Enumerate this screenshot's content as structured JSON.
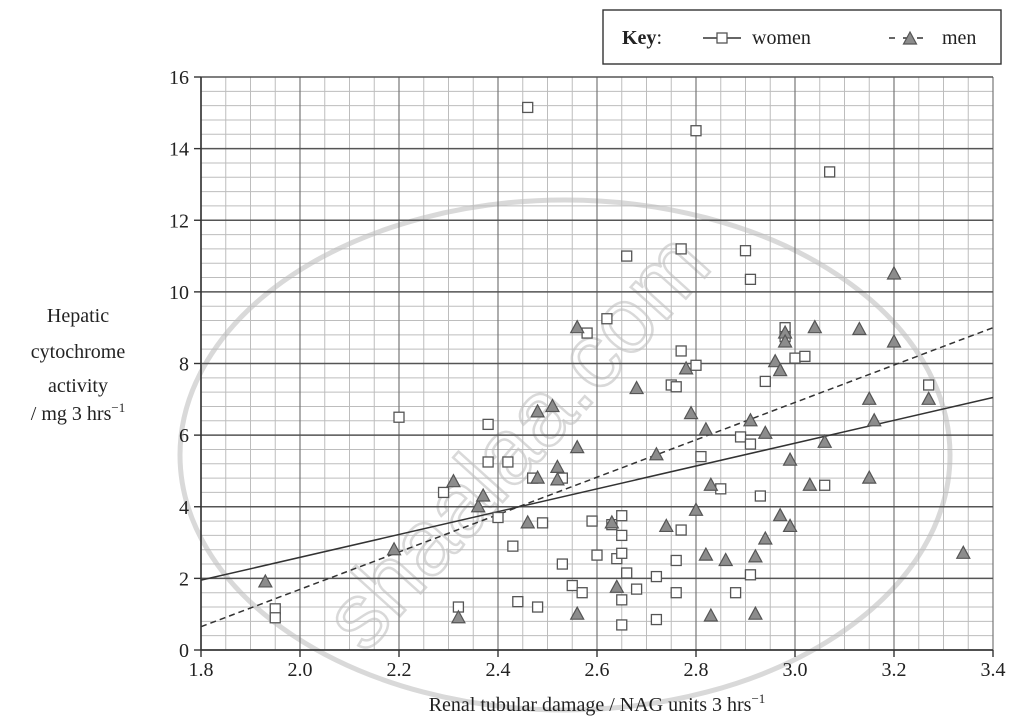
{
  "chart_data": {
    "type": "scatter",
    "title": "",
    "xlabel": "Renal tubular damage / NAG units 3 hrs",
    "xlabel_sup": "−1",
    "ylabel_lines": [
      "Hepatic",
      "cytochrome",
      "activity",
      "/ mg 3 hrs"
    ],
    "ylabel_sup": "−1",
    "xlim": [
      1.8,
      3.4
    ],
    "ylim": [
      0,
      16
    ],
    "x_major_ticks": [
      1.8,
      2.0,
      2.2,
      2.4,
      2.6,
      2.8,
      3.0,
      3.2,
      3.4
    ],
    "x_tick_labels": [
      "1.8",
      "2.0",
      "2.2",
      "2.4",
      "2.6",
      "2.8",
      "3.0",
      "3.2",
      "3.4"
    ],
    "x_minor_step": 0.05,
    "y_major_ticks": [
      0,
      2,
      4,
      6,
      8,
      10,
      12,
      14,
      16
    ],
    "y_tick_labels": [
      "0",
      "2",
      "4",
      "6",
      "8",
      "10",
      "12",
      "14",
      "16"
    ],
    "y_minor_step": 0.4,
    "grid": true,
    "legend": {
      "position": "top-right",
      "title": "Key",
      "entries": [
        {
          "label": "women",
          "marker": "square",
          "line": "solid"
        },
        {
          "label": "men",
          "marker": "triangle",
          "line": "dashed"
        }
      ]
    },
    "series": [
      {
        "name": "women",
        "marker": "square",
        "marker_fill": "#ffffff",
        "marker_stroke": "#555555",
        "trend_line": {
          "style": "solid",
          "from": [
            1.8,
            1.95
          ],
          "to": [
            3.4,
            7.05
          ]
        },
        "points": [
          [
            1.95,
            1.15
          ],
          [
            1.95,
            0.9
          ],
          [
            2.2,
            6.5
          ],
          [
            2.29,
            4.4
          ],
          [
            2.32,
            1.2
          ],
          [
            2.38,
            6.3
          ],
          [
            2.38,
            5.25
          ],
          [
            2.4,
            3.7
          ],
          [
            2.42,
            5.25
          ],
          [
            2.43,
            2.9
          ],
          [
            2.44,
            1.35
          ],
          [
            2.46,
            15.15
          ],
          [
            2.47,
            4.8
          ],
          [
            2.48,
            1.2
          ],
          [
            2.49,
            3.55
          ],
          [
            2.53,
            4.8
          ],
          [
            2.53,
            2.4
          ],
          [
            2.55,
            1.8
          ],
          [
            2.57,
            1.6
          ],
          [
            2.58,
            8.85
          ],
          [
            2.59,
            3.6
          ],
          [
            2.6,
            2.65
          ],
          [
            2.62,
            9.25
          ],
          [
            2.63,
            3.5
          ],
          [
            2.64,
            2.55
          ],
          [
            2.65,
            1.4
          ],
          [
            2.65,
            3.75
          ],
          [
            2.65,
            3.2
          ],
          [
            2.65,
            2.7
          ],
          [
            2.66,
            11.0
          ],
          [
            2.66,
            2.15
          ],
          [
            2.65,
            0.7
          ],
          [
            2.68,
            1.7
          ],
          [
            2.72,
            2.05
          ],
          [
            2.72,
            0.85
          ],
          [
            2.75,
            7.4
          ],
          [
            2.76,
            7.35
          ],
          [
            2.76,
            2.5
          ],
          [
            2.76,
            1.6
          ],
          [
            2.77,
            11.2
          ],
          [
            2.77,
            8.35
          ],
          [
            2.77,
            3.35
          ],
          [
            2.8,
            14.5
          ],
          [
            2.8,
            7.95
          ],
          [
            2.81,
            5.4
          ],
          [
            2.85,
            4.5
          ],
          [
            2.88,
            1.6
          ],
          [
            2.89,
            5.95
          ],
          [
            2.9,
            11.15
          ],
          [
            2.91,
            10.35
          ],
          [
            2.91,
            5.75
          ],
          [
            2.91,
            2.1
          ],
          [
            2.93,
            4.3
          ],
          [
            2.94,
            7.5
          ],
          [
            2.98,
            9.0
          ],
          [
            2.98,
            8.75
          ],
          [
            3.0,
            8.15
          ],
          [
            3.02,
            8.2
          ],
          [
            3.06,
            4.6
          ],
          [
            3.07,
            13.35
          ],
          [
            3.27,
            7.4
          ]
        ]
      },
      {
        "name": "men",
        "marker": "triangle",
        "marker_fill": "#8c8c8c",
        "marker_stroke": "#555555",
        "trend_line": {
          "style": "dashed",
          "from": [
            1.8,
            0.65
          ],
          "to": [
            3.4,
            9.0
          ]
        },
        "points": [
          [
            1.93,
            1.9
          ],
          [
            2.19,
            2.8
          ],
          [
            2.31,
            4.7
          ],
          [
            2.32,
            0.9
          ],
          [
            2.36,
            4.0
          ],
          [
            2.37,
            4.3
          ],
          [
            2.46,
            3.55
          ],
          [
            2.48,
            6.65
          ],
          [
            2.48,
            4.8
          ],
          [
            2.51,
            6.8
          ],
          [
            2.52,
            5.1
          ],
          [
            2.52,
            4.75
          ],
          [
            2.56,
            9.0
          ],
          [
            2.56,
            5.65
          ],
          [
            2.56,
            1.0
          ],
          [
            2.63,
            3.55
          ],
          [
            2.64,
            1.75
          ],
          [
            2.68,
            7.3
          ],
          [
            2.72,
            5.45
          ],
          [
            2.74,
            3.45
          ],
          [
            2.78,
            7.85
          ],
          [
            2.79,
            6.6
          ],
          [
            2.8,
            3.9
          ],
          [
            2.82,
            6.15
          ],
          [
            2.82,
            2.65
          ],
          [
            2.83,
            4.6
          ],
          [
            2.83,
            0.95
          ],
          [
            2.86,
            2.5
          ],
          [
            2.91,
            6.4
          ],
          [
            2.92,
            2.6
          ],
          [
            2.92,
            1.0
          ],
          [
            2.94,
            6.05
          ],
          [
            2.94,
            3.1
          ],
          [
            2.96,
            8.05
          ],
          [
            2.97,
            7.8
          ],
          [
            2.97,
            3.75
          ],
          [
            2.98,
            8.85
          ],
          [
            2.98,
            8.6
          ],
          [
            2.99,
            5.3
          ],
          [
            2.99,
            3.45
          ],
          [
            3.03,
            4.6
          ],
          [
            3.04,
            9.0
          ],
          [
            3.06,
            5.8
          ],
          [
            3.13,
            8.95
          ],
          [
            3.15,
            7.0
          ],
          [
            3.15,
            4.8
          ],
          [
            3.16,
            6.4
          ],
          [
            3.2,
            10.5
          ],
          [
            3.2,
            8.6
          ],
          [
            3.27,
            7.0
          ],
          [
            3.34,
            2.7
          ]
        ]
      }
    ]
  },
  "watermark": {
    "text": "shaalaa.com",
    "color": "#d9d9d9"
  }
}
